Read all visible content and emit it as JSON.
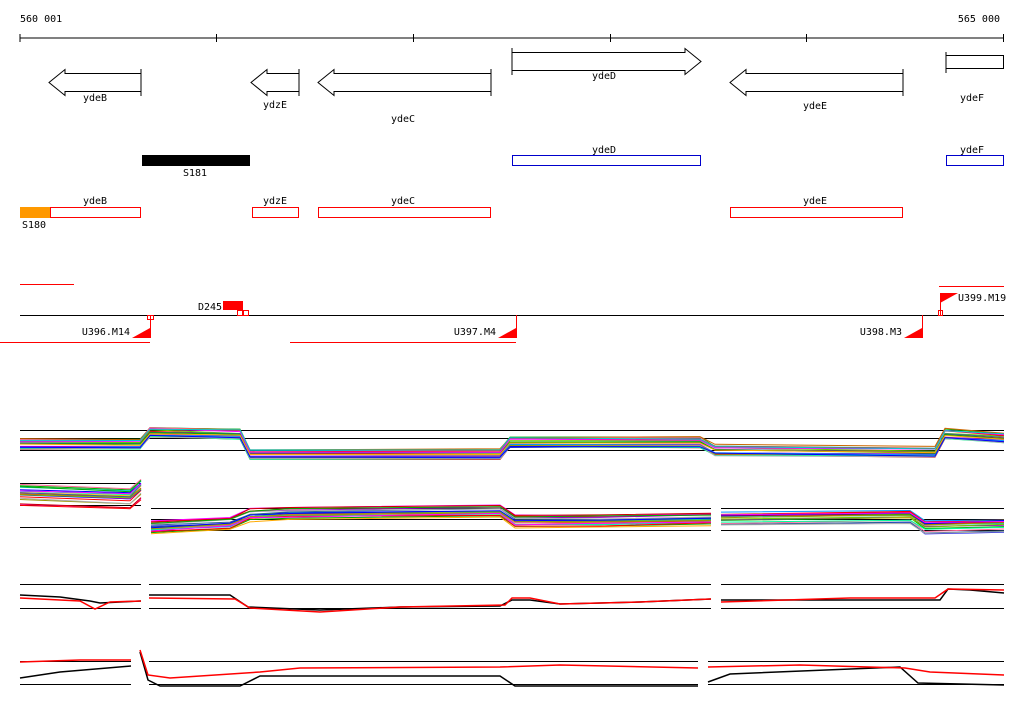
{
  "ruler": {
    "start_label": "560 001",
    "end_label": "565 000"
  },
  "genes": [
    {
      "name": "ydeB",
      "strand": "-"
    },
    {
      "name": "ydzE",
      "strand": "-"
    },
    {
      "name": "ydeC",
      "strand": "-"
    },
    {
      "name": "ydeD",
      "strand": "+"
    },
    {
      "name": "ydeE",
      "strand": "-"
    },
    {
      "name": "ydeF",
      "strand": "+"
    }
  ],
  "features": {
    "forward_segments": [
      {
        "label": "S181",
        "color": "#000000"
      }
    ],
    "forward_boxes": [
      {
        "label": "ydeD",
        "color": "#0000cc"
      },
      {
        "label": "ydeF",
        "color": "#0000cc"
      }
    ],
    "reverse_segments": [
      {
        "label": "S180",
        "color": "#ff9900"
      }
    ],
    "reverse_boxes": [
      {
        "label": "ydeB",
        "color": "#ff0000"
      },
      {
        "label": "ydzE",
        "color": "#ff0000"
      },
      {
        "label": "ydeC",
        "color": "#ff0000"
      },
      {
        "label": "ydeE",
        "color": "#ff0000"
      }
    ]
  },
  "transcription_units": [
    {
      "label": "D245",
      "color": "#ff0000"
    },
    {
      "label": "U399.M19",
      "color": "#ff0000"
    },
    {
      "label": "U396.M14",
      "color": "#ff0000"
    },
    {
      "label": "U397.M4",
      "color": "#ff0000"
    },
    {
      "label": "U398.M3",
      "color": "#ff0000"
    }
  ],
  "expression_colors": [
    "#ff0000",
    "#00aa00",
    "#0000ff",
    "#ff00ff",
    "#00cccc",
    "#ffaa00",
    "#9900cc",
    "#66cc00",
    "#cc6600",
    "#0099ff",
    "#ff6699",
    "#999900",
    "#336699",
    "#cc0000",
    "#00ff99",
    "#aaaaaa"
  ],
  "summary_colors": {
    "black": "#000000",
    "red": "#ff0000"
  }
}
